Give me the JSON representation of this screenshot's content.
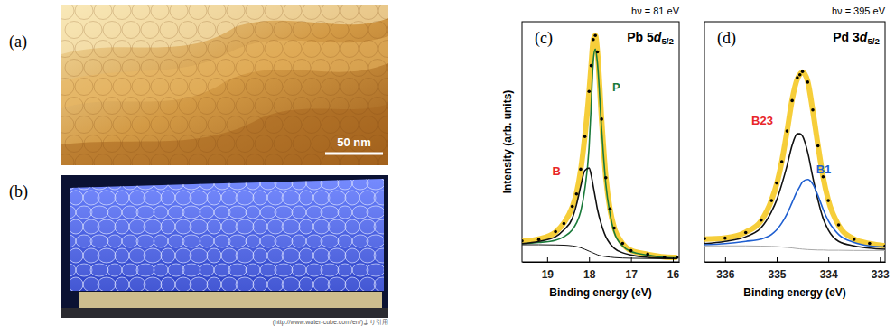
{
  "figure": {
    "a": {
      "label": "(a)",
      "scale_bar": "50 nm"
    },
    "b": {
      "label": "(b)",
      "credit": "(http://www.water-cube.com/en/)より引用"
    }
  },
  "chart_data": [
    {
      "type": "line",
      "title": "Pb 5d5/2",
      "subtitle": "hν = 81 eV",
      "panel_label": "(c)",
      "x_label": "Binding energy (eV)",
      "y_label": "Intensity (arb. units)",
      "x": [
        19.6,
        19.2,
        18.8,
        18.6,
        18.4,
        18.3,
        18.2,
        18.1,
        18.0,
        17.95,
        17.9,
        17.85,
        17.8,
        17.7,
        17.6,
        17.5,
        17.4,
        17.2,
        17.0,
        16.6,
        16.2,
        15.9
      ],
      "xlim": [
        19.6,
        15.85
      ],
      "xticks": [
        19,
        18,
        17,
        16
      ],
      "ylim": [
        0,
        1.05
      ],
      "tick_labels": "x",
      "grid": false,
      "series": [
        {
          "type": "line",
          "color": "#f5c518",
          "line_style": "bold",
          "values": [
            0.09,
            0.1,
            0.13,
            0.17,
            0.24,
            0.3,
            0.4,
            0.55,
            0.74,
            0.86,
            0.97,
            0.99,
            0.92,
            0.62,
            0.37,
            0.23,
            0.15,
            0.08,
            0.05,
            0.033,
            0.022,
            0.02
          ]
        },
        {
          "type": "line",
          "color": "#1a7a3a",
          "line_style": "solid",
          "values": [
            0.08,
            0.085,
            0.095,
            0.11,
            0.14,
            0.17,
            0.22,
            0.32,
            0.5,
            0.68,
            0.88,
            0.93,
            0.87,
            0.58,
            0.34,
            0.21,
            0.13,
            0.07,
            0.045,
            0.03,
            0.02,
            0.018
          ]
        },
        {
          "type": "line",
          "color": "#111111",
          "line_style": "solid",
          "values": [
            0.08,
            0.09,
            0.11,
            0.14,
            0.19,
            0.25,
            0.33,
            0.4,
            0.41,
            0.38,
            0.33,
            0.28,
            0.23,
            0.16,
            0.11,
            0.08,
            0.06,
            0.04,
            0.03,
            0.02,
            0.017,
            0.015
          ]
        },
        {
          "type": "line",
          "color": "#111111",
          "line_style": "thin",
          "values": [
            0.075,
            0.075,
            0.074,
            0.073,
            0.07,
            0.067,
            0.062,
            0.055,
            0.047,
            0.043,
            0.039,
            0.035,
            0.031,
            0.026,
            0.023,
            0.021,
            0.019,
            0.017,
            0.016,
            0.015,
            0.014,
            0.014
          ]
        },
        {
          "type": "scatter",
          "color": "#000000",
          "marker": "dot",
          "values": [
            0.092,
            0.098,
            0.132,
            0.168,
            0.243,
            0.297,
            0.405,
            0.548,
            0.745,
            0.858,
            0.972,
            0.99,
            0.918,
            0.624,
            0.368,
            0.232,
            0.148,
            0.081,
            0.049,
            0.034,
            0.021,
            0.02
          ]
        }
      ],
      "annotations": [
        {
          "text": "P",
          "color": "#1a7a3a"
        },
        {
          "text": "B",
          "color": "#e8262a"
        }
      ]
    },
    {
      "type": "line",
      "title": "Pd 3d5/2",
      "subtitle": "hν = 395 eV",
      "panel_label": "(d)",
      "x_label": "Binding energy (eV)",
      "x": [
        336.4,
        336.0,
        335.6,
        335.3,
        335.1,
        335.0,
        334.9,
        334.8,
        334.7,
        334.6,
        334.55,
        334.5,
        334.4,
        334.3,
        334.2,
        334.1,
        334.0,
        333.8,
        333.5,
        333.2,
        332.9
      ],
      "xlim": [
        336.4,
        332.9
      ],
      "xticks": [
        336,
        335,
        334,
        333
      ],
      "ylim": [
        0,
        1.05
      ],
      "tick_labels": "x",
      "grid": false,
      "series": [
        {
          "type": "line",
          "color": "#f5c518",
          "line_style": "bold",
          "values": [
            0.1,
            0.105,
            0.13,
            0.18,
            0.27,
            0.34,
            0.44,
            0.57,
            0.71,
            0.8,
            0.82,
            0.83,
            0.79,
            0.66,
            0.51,
            0.37,
            0.27,
            0.16,
            0.1,
            0.08,
            0.07
          ]
        },
        {
          "type": "line",
          "color": "#111111",
          "line_style": "solid",
          "values": [
            0.08,
            0.09,
            0.11,
            0.15,
            0.22,
            0.27,
            0.34,
            0.42,
            0.51,
            0.56,
            0.56,
            0.55,
            0.48,
            0.37,
            0.27,
            0.19,
            0.14,
            0.09,
            0.07,
            0.06,
            0.055
          ]
        },
        {
          "type": "line",
          "color": "#1f5fd0",
          "line_style": "solid",
          "values": [
            0.075,
            0.08,
            0.09,
            0.1,
            0.12,
            0.14,
            0.17,
            0.21,
            0.26,
            0.31,
            0.33,
            0.35,
            0.36,
            0.34,
            0.29,
            0.23,
            0.18,
            0.12,
            0.085,
            0.07,
            0.065
          ]
        },
        {
          "type": "line",
          "color": "#aaaaaa",
          "line_style": "thin",
          "values": [
            0.07,
            0.07,
            0.07,
            0.069,
            0.068,
            0.067,
            0.065,
            0.063,
            0.061,
            0.058,
            0.057,
            0.056,
            0.054,
            0.053,
            0.052,
            0.052,
            0.051,
            0.051,
            0.05,
            0.05,
            0.05
          ]
        },
        {
          "type": "scatter",
          "color": "#000000",
          "marker": "dot",
          "values": [
            0.102,
            0.104,
            0.128,
            0.183,
            0.268,
            0.345,
            0.438,
            0.572,
            0.705,
            0.805,
            0.818,
            0.832,
            0.786,
            0.664,
            0.507,
            0.372,
            0.268,
            0.162,
            0.099,
            0.081,
            0.069
          ]
        }
      ],
      "annotations": [
        {
          "text": "B23",
          "color": "#e8262a"
        },
        {
          "text": "B1",
          "color": "#1f5fd0"
        }
      ]
    }
  ]
}
